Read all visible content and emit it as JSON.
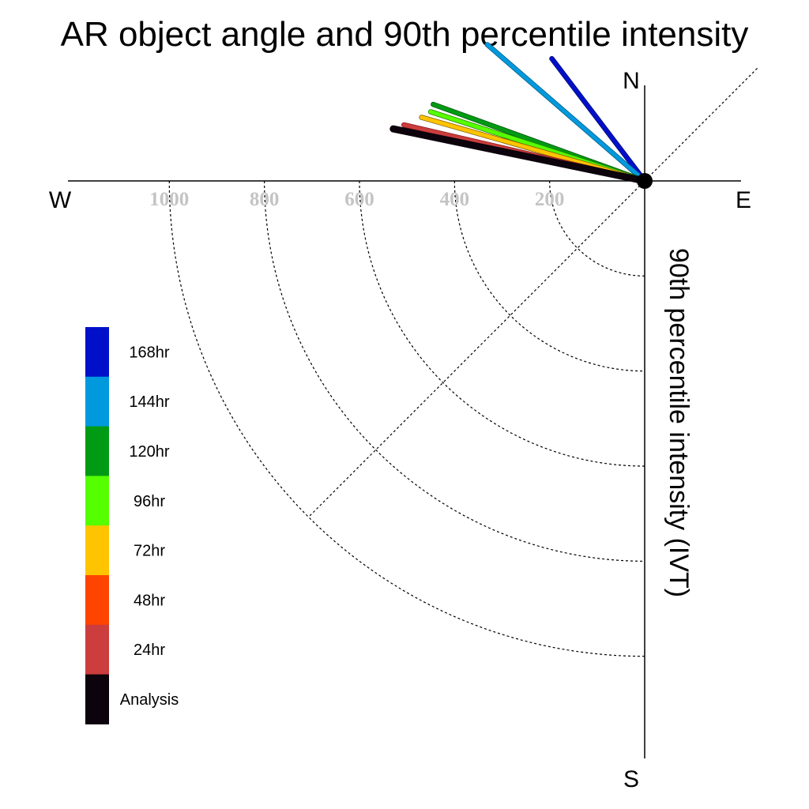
{
  "chart_data": {
    "type": "polar-line",
    "title": "AR object angle and 90th percentile intensity",
    "radial_label": "90th percentile intensity (IVT)",
    "compass": {
      "north": "N",
      "south": "S",
      "east": "E",
      "west": "W"
    },
    "radial_ticks": [
      {
        "value": 200,
        "label": "200"
      },
      {
        "value": 400,
        "label": "400"
      },
      {
        "value": 600,
        "label": "600"
      },
      {
        "value": 800,
        "label": "800"
      },
      {
        "value": 1000,
        "label": "1000"
      }
    ],
    "radial_range": [
      0,
      1000
    ],
    "angle_reference": "degrees from north, clockwise",
    "legend_placement": "left",
    "series": [
      {
        "name": "Analysis",
        "color": "#0c030c",
        "border": "#0c030c",
        "angle": 281.7,
        "intensity": 540
      },
      {
        "name": "24hr",
        "color": "#cc3d3d",
        "border": "#8a1a1a",
        "angle": 283.1,
        "intensity": 520
      },
      {
        "name": "48hr",
        "color": "#ff4400",
        "border": "#a02800",
        "angle": null,
        "intensity": null
      },
      {
        "name": "72hr",
        "color": "#ffc400",
        "border": "#7a5a00",
        "angle": 285.9,
        "intensity": 488
      },
      {
        "name": "96hr",
        "color": "#55ff00",
        "border": "#2a7a00",
        "angle": 287.9,
        "intensity": 473
      },
      {
        "name": "120hr",
        "color": "#009a14",
        "border": "#00500a",
        "angle": 289.9,
        "intensity": 473
      },
      {
        "name": "144hr",
        "color": "#0099dd",
        "border": "#005a80",
        "angle": 310.9,
        "intensity": 438
      },
      {
        "name": "168hr",
        "color": "#0010c8",
        "border": "#000a70",
        "angle": 322.8,
        "intensity": 323
      }
    ],
    "grid": {
      "arcs": true,
      "diagonal": true,
      "style": "dotted"
    }
  }
}
